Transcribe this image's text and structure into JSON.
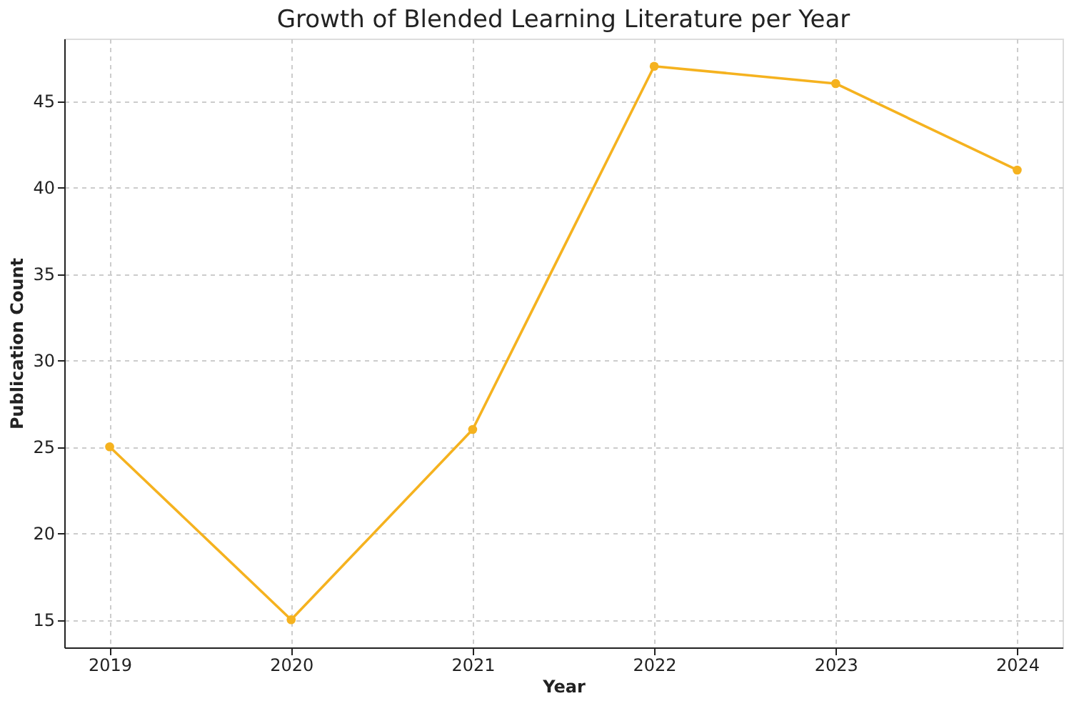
{
  "chart_data": {
    "type": "line",
    "title": "Growth of Blended Learning Literature per Year",
    "xlabel": "Year",
    "ylabel": "Publication Count",
    "x": [
      2019,
      2020,
      2021,
      2022,
      2023,
      2024
    ],
    "series": [
      {
        "color": "#f5b21f",
        "values": [
          25,
          15,
          26,
          47,
          46,
          41
        ]
      }
    ],
    "xlim": [
      2018.75,
      2024.25
    ],
    "xticks": [
      2019,
      2020,
      2021,
      2022,
      2023,
      2024
    ],
    "ylim": [
      13.4,
      48.6
    ],
    "yticks": [
      15,
      20,
      25,
      30,
      35,
      40,
      45
    ],
    "grid": true,
    "marker": "circle",
    "line_style": "solid"
  }
}
